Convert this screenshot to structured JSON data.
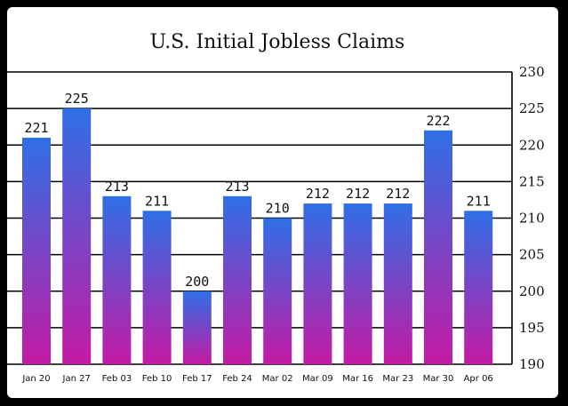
{
  "chart_data": {
    "type": "bar",
    "title": "U.S. Initial Jobless Claims",
    "xlabel": "",
    "ylabel": "",
    "categories": [
      "Jan 20",
      "Jan 27",
      "Feb 03",
      "Feb 10",
      "Feb 17",
      "Feb 24",
      "Mar 02",
      "Mar 09",
      "Mar 16",
      "Mar 23",
      "Mar 30",
      "Apr 06"
    ],
    "values": [
      221,
      225,
      213,
      211,
      200,
      213,
      210,
      212,
      212,
      212,
      222,
      211
    ],
    "ylim": [
      190,
      230
    ],
    "yticks": [
      190,
      195,
      200,
      205,
      210,
      215,
      220,
      225,
      230
    ],
    "y_axis_side": "right",
    "grid": true,
    "data_labels": true,
    "colors": {
      "bar_top": "#2f6fe6",
      "bar_bottom": "#c41aa4",
      "grid": "#000000"
    }
  }
}
